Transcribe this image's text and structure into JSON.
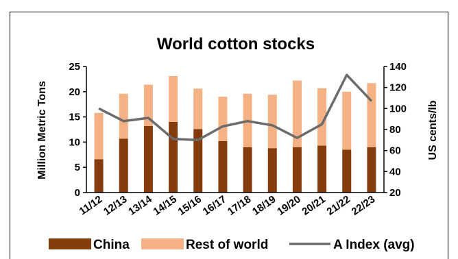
{
  "chart_data": {
    "type": "bar",
    "title": "World cotton stocks",
    "categories": [
      "11/12",
      "12/13",
      "13/14",
      "14/15",
      "15/16",
      "16/17",
      "17/18",
      "18/19",
      "19/20",
      "20/21",
      "21/22",
      "22/23"
    ],
    "series": [
      {
        "name": "China",
        "kind": "stacked-bar",
        "axis": "left",
        "color": "#843c0c",
        "values": [
          6.6,
          10.7,
          13.2,
          14.0,
          12.6,
          10.2,
          9.0,
          8.8,
          9.0,
          9.3,
          8.5,
          9.0
        ]
      },
      {
        "name": "Rest of world",
        "kind": "stacked-bar",
        "axis": "left",
        "color": "#f4b183",
        "values": [
          9.2,
          8.9,
          8.2,
          9.1,
          8.0,
          8.8,
          10.6,
          10.6,
          13.2,
          11.4,
          11.5,
          12.7
        ]
      },
      {
        "name": "A Index (avg)",
        "kind": "line",
        "axis": "right",
        "color": "#6b6b6b",
        "values": [
          100,
          88,
          91,
          71,
          70,
          83,
          88,
          84,
          72,
          85,
          132,
          107
        ]
      }
    ],
    "ylabel": "Million Metric Tons",
    "y2label": "US cents/lb",
    "ylim": [
      0,
      25
    ],
    "yticks": [
      0,
      5,
      10,
      15,
      20,
      25
    ],
    "y2lim": [
      20,
      140
    ],
    "y2ticks": [
      20,
      40,
      60,
      80,
      100,
      120,
      140
    ],
    "grid": false,
    "legend_position": "bottom"
  }
}
